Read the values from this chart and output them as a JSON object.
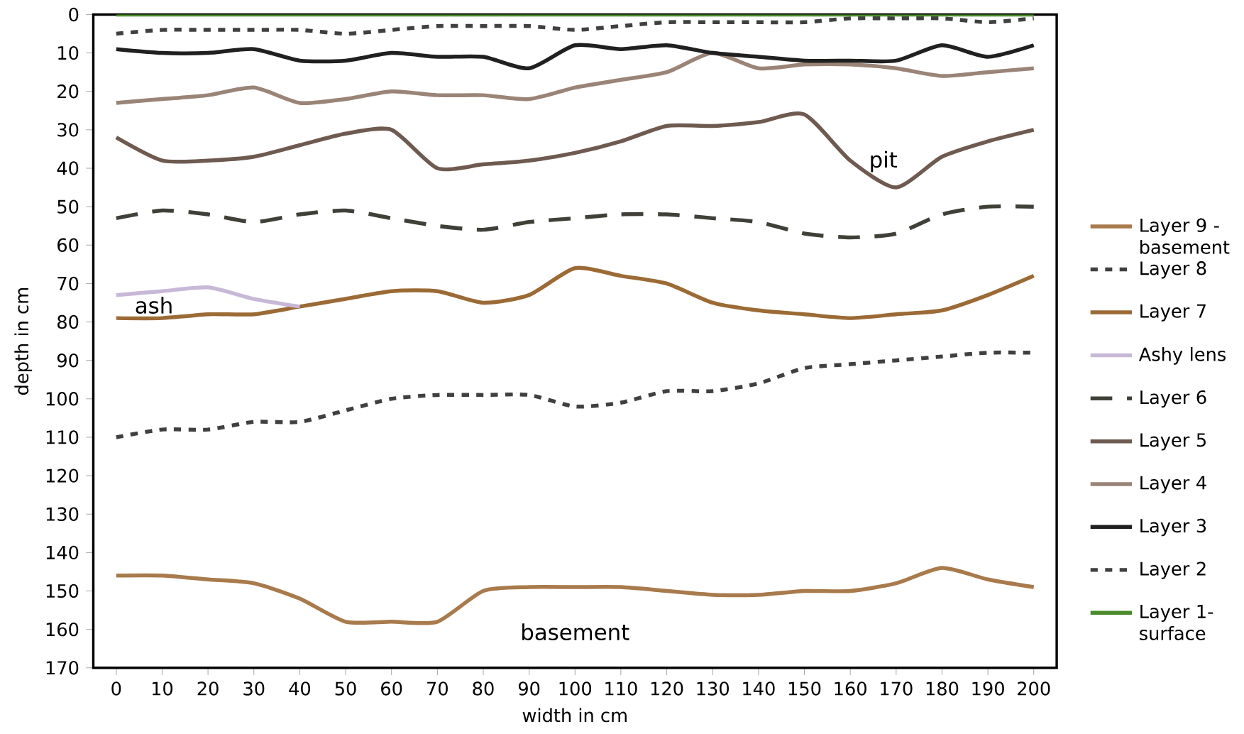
{
  "chart_data": {
    "type": "line",
    "xlabel": "width in cm",
    "ylabel": "depth in cm",
    "x": [
      0,
      10,
      20,
      30,
      40,
      50,
      60,
      70,
      80,
      90,
      100,
      110,
      120,
      130,
      140,
      150,
      160,
      170,
      180,
      190,
      200
    ],
    "xlim": [
      -5,
      205
    ],
    "xticks": [
      0,
      10,
      20,
      30,
      40,
      50,
      60,
      70,
      80,
      90,
      100,
      110,
      120,
      130,
      140,
      150,
      160,
      170,
      180,
      190,
      200
    ],
    "ylim": [
      170,
      0
    ],
    "yticks": [
      0,
      10,
      20,
      30,
      40,
      50,
      60,
      70,
      80,
      90,
      100,
      110,
      120,
      130,
      140,
      150,
      160,
      170
    ],
    "grid": false,
    "legend": "right",
    "marker": "none",
    "series": [
      {
        "name": "Layer 9 - basement",
        "color": "#a87a4c",
        "line_style": "solid",
        "values": [
          146,
          146,
          147,
          148,
          152,
          158,
          158,
          158,
          150,
          149,
          149,
          149,
          150,
          151,
          151,
          150,
          150,
          148,
          144,
          147,
          149
        ]
      },
      {
        "name": "Layer 8",
        "color": "#404040",
        "line_style": "dotted",
        "values": [
          110,
          108,
          108,
          106,
          106,
          103,
          100,
          99,
          99,
          99,
          102,
          101,
          98,
          98,
          96,
          92,
          91,
          90,
          89,
          88,
          88
        ]
      },
      {
        "name": "Layer 7",
        "color": "#9b6a35",
        "line_style": "solid",
        "values": [
          79,
          79,
          78,
          78,
          76,
          74,
          72,
          72,
          75,
          73,
          66,
          68,
          70,
          75,
          77,
          78,
          79,
          78,
          77,
          73,
          68
        ]
      },
      {
        "name": "Ashy lens",
        "color": "#c8b8d8",
        "line_style": "solid",
        "x": [
          0,
          10,
          20,
          30,
          40
        ],
        "values": [
          73,
          72,
          71,
          74,
          76
        ]
      },
      {
        "name": "Layer 6",
        "color": "#404038",
        "line_style": "dashed",
        "values": [
          53,
          51,
          52,
          54,
          52,
          51,
          53,
          55,
          56,
          54,
          53,
          52,
          52,
          53,
          54,
          57,
          58,
          57,
          52,
          50,
          50
        ]
      },
      {
        "name": "Layer 5",
        "color": "#6e5a50",
        "line_style": "solid",
        "values": [
          32,
          38,
          38,
          37,
          34,
          31,
          30,
          40,
          39,
          38,
          36,
          33,
          29,
          29,
          28,
          26,
          38,
          45,
          37,
          33,
          30
        ]
      },
      {
        "name": "Layer 4",
        "color": "#9a8478",
        "line_style": "solid",
        "values": [
          23,
          22,
          21,
          19,
          23,
          22,
          20,
          21,
          21,
          22,
          19,
          17,
          15,
          10,
          14,
          13,
          13,
          14,
          16,
          15,
          14
        ]
      },
      {
        "name": "Layer 3",
        "color": "#202020",
        "line_style": "solid",
        "values": [
          9,
          10,
          10,
          9,
          12,
          12,
          10,
          11,
          11,
          14,
          8,
          9,
          8,
          10,
          11,
          12,
          12,
          12,
          8,
          11,
          8
        ]
      },
      {
        "name": "Layer 2",
        "color": "#404040",
        "line_style": "dotted",
        "values": [
          5,
          4,
          4,
          4,
          4,
          5,
          4,
          3,
          3,
          3,
          4,
          3,
          2,
          2,
          2,
          2,
          1,
          1,
          1,
          2,
          1
        ]
      },
      {
        "name": "Layer 1- surface",
        "color": "#4a8a2a",
        "line_style": "solid",
        "values": [
          0,
          0,
          0,
          0,
          0,
          0,
          0,
          0,
          0,
          0,
          0,
          0,
          0,
          0,
          0,
          0,
          0,
          0,
          0,
          0,
          0
        ]
      }
    ],
    "annotations": [
      "ash",
      "pit",
      "basement"
    ]
  }
}
